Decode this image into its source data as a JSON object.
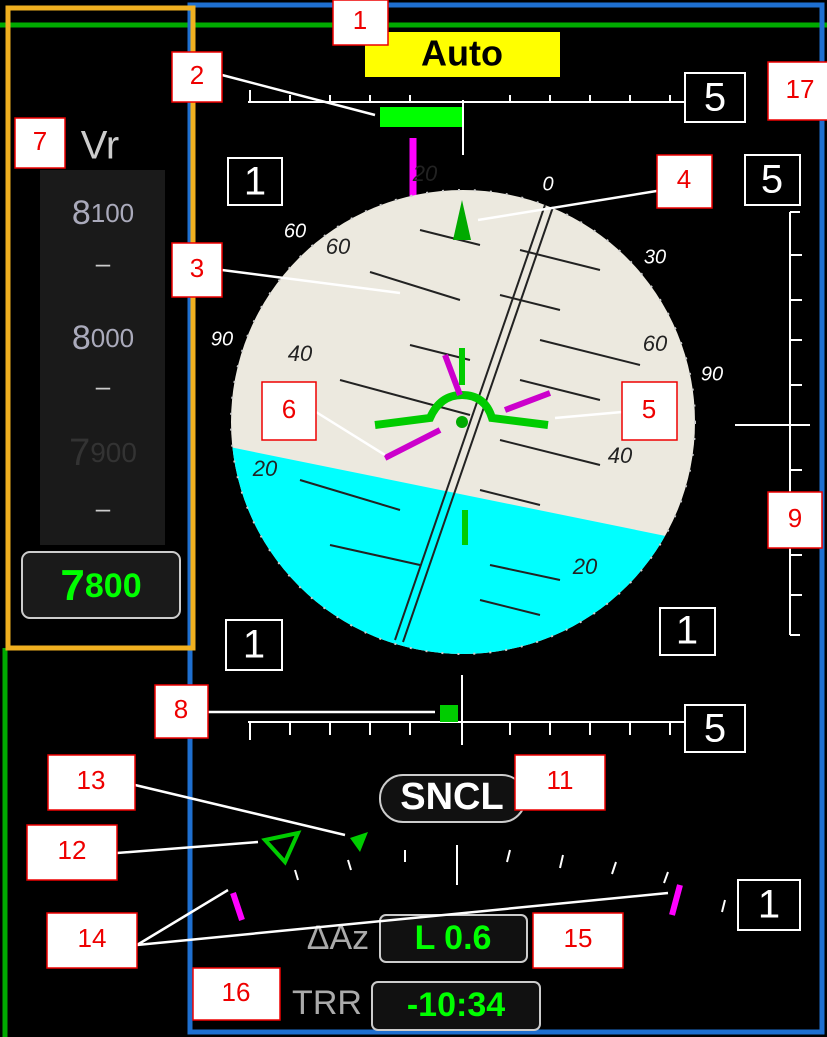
{
  "mode": "Auto",
  "scale_boxes": [
    "5",
    "1",
    "5",
    "1",
    "1",
    "5",
    "1"
  ],
  "altitude": {
    "label": "Vr",
    "ticks": [
      {
        "major": "8",
        "minor": "100"
      },
      {
        "major": "8",
        "minor": "000"
      },
      {
        "major": "7",
        "minor": "900"
      }
    ],
    "dashes": [
      "–",
      "–",
      "–"
    ],
    "current": {
      "major": "7",
      "minor": "800"
    }
  },
  "adi_labels": [
    "20",
    "0",
    "30",
    "60",
    "60",
    "90",
    "60",
    "90",
    "40",
    "60",
    "40",
    "20",
    "20"
  ],
  "status": "SNCL",
  "delta_az": {
    "label": "ΔAz",
    "value": "L 0.6"
  },
  "trr": {
    "label": "TRR",
    "value": "-10:34"
  },
  "callouts": [
    "1",
    "2",
    "17",
    "7",
    "4",
    "3",
    "6",
    "5",
    "9",
    "8",
    "11",
    "13",
    "12",
    "14",
    "15",
    "16"
  ]
}
